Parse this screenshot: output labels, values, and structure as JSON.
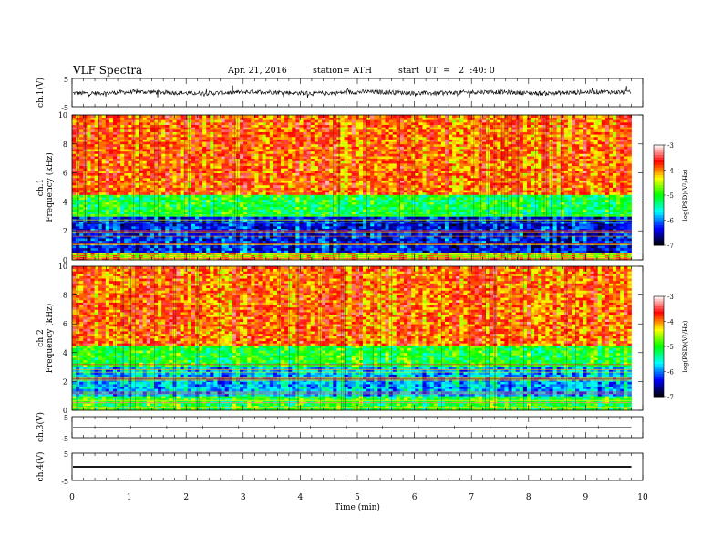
{
  "header": {
    "title": "VLF Spectra",
    "date": "Apr. 21, 2016",
    "station": "station= ATH",
    "start": "start  UT  =   2  :40: 0"
  },
  "chart_data": [
    {
      "type": "line",
      "panel": "ch1-waveform",
      "ylabel": "ch.1(V)",
      "yticks": [
        "5",
        "-5"
      ],
      "ylim": [
        -5,
        5
      ],
      "xlim": [
        0,
        10
      ],
      "description_values": {
        "baseline": 0.0,
        "noise_amplitude": 1.2
      }
    },
    {
      "type": "heatmap",
      "panel": "ch1-spectrogram",
      "ylabel": [
        "ch.1",
        "Frequency  (kHz)"
      ],
      "yticks": [
        "0",
        "2",
        "4",
        "6",
        "8",
        "10"
      ],
      "ylim": [
        0,
        10
      ],
      "xlim": [
        0,
        9.8
      ],
      "colorbar": {
        "label": "log(PSD)(V²/Hz)",
        "ticks": [
          "-3",
          "-4",
          "-5",
          "-6",
          "-7"
        ],
        "range": [
          -7,
          -3
        ],
        "colors": [
          "#000000",
          "#0000ff",
          "#00ffff",
          "#00ff00",
          "#ffff00",
          "#ff0000",
          "#ffffff"
        ]
      },
      "bands": [
        {
          "from_khz": 0.0,
          "to_khz": 0.5,
          "level": -4.2
        },
        {
          "from_khz": 0.5,
          "to_khz": 3.0,
          "level": -6.3
        },
        {
          "from_khz": 3.0,
          "to_khz": 4.5,
          "level": -5.1
        },
        {
          "from_khz": 4.5,
          "to_khz": 10.0,
          "level": -3.9
        }
      ]
    },
    {
      "type": "heatmap",
      "panel": "ch2-spectrogram",
      "ylabel": [
        "ch.2",
        "Frequency  (kHz)"
      ],
      "yticks": [
        "0",
        "2",
        "4",
        "6",
        "8",
        "10"
      ],
      "ylim": [
        0,
        10
      ],
      "xlim": [
        0,
        9.8
      ],
      "colorbar": {
        "label": "log(PSD)(V²/Hz)",
        "ticks": [
          "-3",
          "-4",
          "-5",
          "-6",
          "-7"
        ],
        "range": [
          -7,
          -3
        ],
        "colors": [
          "#000000",
          "#0000ff",
          "#00ffff",
          "#00ff00",
          "#ffff00",
          "#ff0000",
          "#ffffff"
        ]
      },
      "bands": [
        {
          "from_khz": 0.0,
          "to_khz": 1.0,
          "level": -5.0
        },
        {
          "from_khz": 1.0,
          "to_khz": 3.0,
          "level": -5.8
        },
        {
          "from_khz": 3.0,
          "to_khz": 4.5,
          "level": -5.0
        },
        {
          "from_khz": 4.5,
          "to_khz": 10.0,
          "level": -3.9
        }
      ]
    },
    {
      "type": "line",
      "panel": "ch3-waveform",
      "ylabel": "ch.3(V)",
      "yticks": [
        "5",
        "-5"
      ],
      "ylim": [
        -5,
        5
      ],
      "xlim": [
        0,
        10
      ],
      "description_values": {
        "baseline": 0.0
      }
    },
    {
      "type": "line",
      "panel": "ch4-waveform",
      "ylabel": "ch.4(V)",
      "yticks": [
        "5",
        "-5"
      ],
      "ylim": [
        -5,
        5
      ],
      "xlim": [
        0,
        10
      ],
      "xlabel": "Time  (min)",
      "xticks": [
        "0",
        "1",
        "2",
        "3",
        "4",
        "5",
        "6",
        "7",
        "8",
        "9",
        "10"
      ],
      "description_values": {
        "baseline": 0.0
      }
    }
  ]
}
